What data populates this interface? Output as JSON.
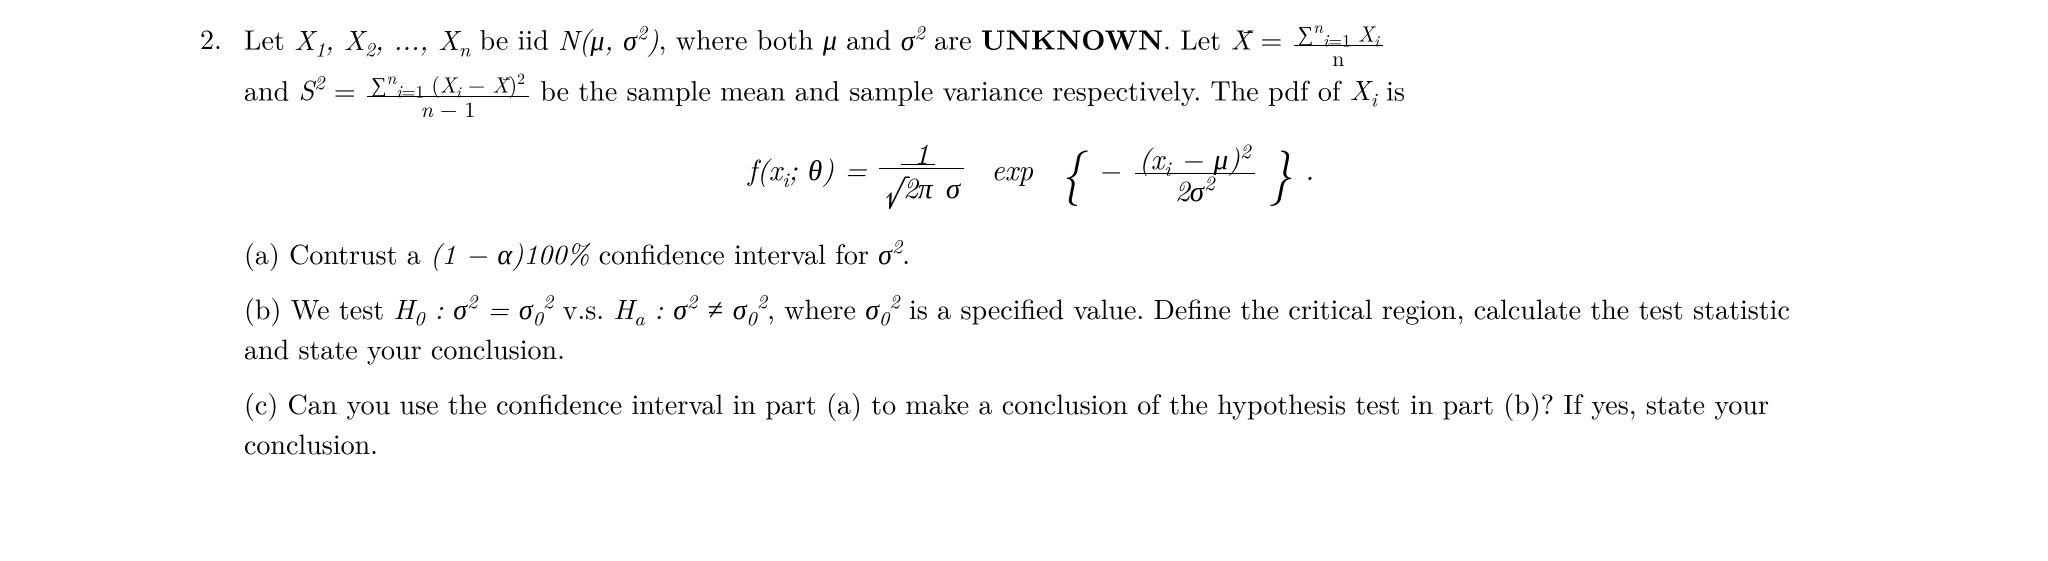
{
  "problem_number": "2.",
  "intro_line1_a": "Let ",
  "seq": "X₁, X₂, ..., Xₙ",
  "intro_line1_b": " be iid ",
  "dist": "N(μ, σ²)",
  "intro_line1_c": ", where both ",
  "mu": "μ",
  "intro_line1_d": " and ",
  "sigma2": "σ²",
  "intro_line1_e": " are ",
  "unknown": "UNKNOWN",
  "intro_line1_f": ". Let ",
  "xbar": "X̄",
  "eq": " = ",
  "xbar_num": "∑ⁿᵢ₌₁ Xᵢ",
  "xbar_den": "n",
  "and": "and ",
  "S2": "S²",
  "s2_num": "∑ⁿᵢ₌₁ (Xᵢ − X̄)²",
  "s2_den": "n − 1",
  "intro_line2_b": " be the sample mean and sample variance respectively. The pdf of ",
  "Xi": "Xᵢ",
  "is": " is",
  "pdf_lhs": "f(xᵢ; θ) = ",
  "pdf_frac_num": "1",
  "pdf_frac_den_sqrt": "2π",
  "pdf_frac_den_sigma": " σ",
  "exp": " exp ",
  "neg": "−",
  "exp_num": "(xᵢ − μ)²",
  "exp_den": "2σ²",
  "period": " .",
  "part_a_label": "(a) ",
  "part_a_text1": "Contrust a ",
  "part_a_ci": "(1 − α)100%",
  "part_a_text2": " confidence interval for ",
  "part_a_end": ".",
  "part_b_label": "(b) ",
  "part_b_text1": "We test ",
  "H0": "H₀ : σ² = σ₀²",
  "vs": " v.s. ",
  "Ha": "Hₐ : σ² ≠ σ₀²",
  "part_b_text2": ", where ",
  "sigma02": "σ₀²",
  "part_b_text3": " is a specified value. Define the critical region, calculate the test statistic and state your conclusion.",
  "part_c_label": "(c) ",
  "part_c_text": "Can you use the confidence interval in part (a) to make a conclusion of the hypothesis test in part (b)? If yes, state your conclusion."
}
